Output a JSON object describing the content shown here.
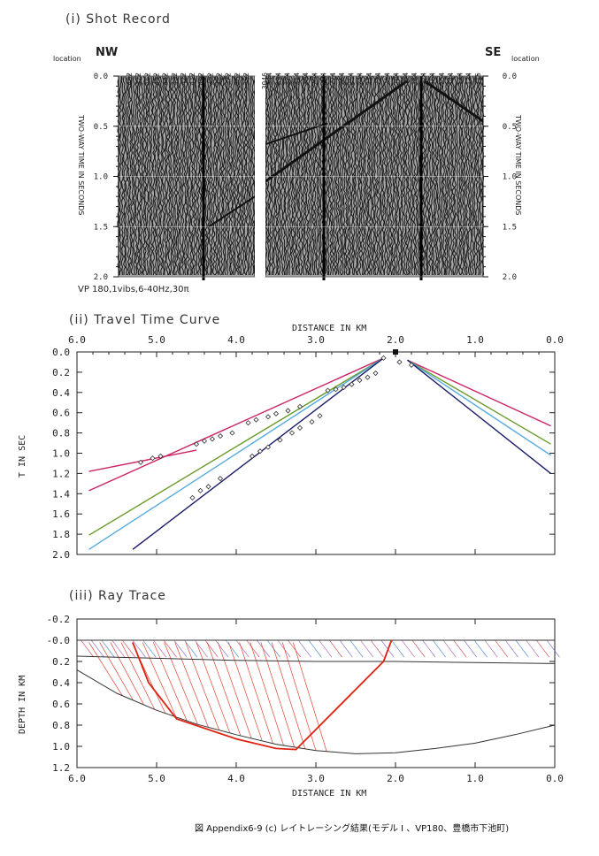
{
  "panel1": {
    "title": "(i)  Shot Record",
    "left_dir": "NW",
    "right_dir": "SE",
    "location_label": "location",
    "axis_label": "TWO-WAY TIME IN SECONDS",
    "time_ticks": [
      "0.0",
      "0.5",
      "1.0",
      "1.5",
      "2.0"
    ],
    "locations_left": [
      "482",
      "472",
      "462",
      "452",
      "442",
      "432",
      "422",
      "412",
      "402",
      "392",
      "382",
      "372",
      "362",
      "352"
    ],
    "locations_right": [
      "344",
      "334",
      "324",
      "314",
      "304",
      "294",
      "284",
      "274",
      "264",
      "254",
      "244",
      "234",
      "224",
      "214",
      "204",
      "194",
      "184",
      "174",
      "164",
      "154",
      "144",
      "134",
      "124",
      "115"
    ],
    "gap_label": "3046",
    "vp_label": "VP 180,1vibs,6-40Hz,30π"
  },
  "panel2": {
    "title": "(ii)  Travel Time Curve",
    "xlabel": "DISTANCE IN KM",
    "ylabel": "T IN SEC",
    "x_ticks": [
      "6.0",
      "5.0",
      "4.0",
      "3.0",
      "2.0",
      "1.0",
      "0.0"
    ],
    "y_ticks": [
      "0.0",
      "0.2",
      "0.4",
      "0.6",
      "0.8",
      "1.0",
      "1.2",
      "1.4",
      "1.6",
      "1.8",
      "2.0"
    ]
  },
  "panel3": {
    "title": "(iii)  Ray Trace",
    "xlabel": "DISTANCE IN KM",
    "ylabel": "DEPTH IN KM",
    "x_ticks": [
      "6.0",
      "5.0",
      "4.0",
      "3.0",
      "2.0",
      "1.0",
      "0.0"
    ],
    "y_ticks": [
      "-0.2",
      "-0.0",
      "0.2",
      "0.4",
      "0.6",
      "0.8",
      "1.0",
      "1.2"
    ]
  },
  "caption": "図 Appendix6-9 (c)  レイトレーシング結果(モデル I 、VP180、豊橋市下池町)",
  "chart_data": [
    {
      "type": "line",
      "title": "(ii)  Travel Time Curve",
      "xlabel": "DISTANCE IN KM",
      "ylabel": "T IN SEC",
      "xlim": [
        6.0,
        0.0
      ],
      "ylim": [
        2.0,
        0.0
      ],
      "source_x": 2.0,
      "series": [
        {
          "color": "#cc2266",
          "x": [
            5.85,
            4.5
          ],
          "y": [
            1.18,
            0.97
          ]
        },
        {
          "color": "#cc2266",
          "x": [
            5.85,
            2.15
          ],
          "y": [
            1.37,
            0.06
          ]
        },
        {
          "color": "#6a9a2a",
          "x": [
            5.85,
            2.15
          ],
          "y": [
            1.81,
            0.06
          ]
        },
        {
          "color": "#55aadd",
          "x": [
            5.85,
            2.15
          ],
          "y": [
            1.95,
            0.06
          ]
        },
        {
          "color": "#1a1a6a",
          "x": [
            5.3,
            2.15
          ],
          "y": [
            1.95,
            0.06
          ]
        },
        {
          "color": "#cc2266",
          "x": [
            1.85,
            0.05
          ],
          "y": [
            0.08,
            0.73
          ]
        },
        {
          "color": "#6a9a2a",
          "x": [
            1.85,
            0.05
          ],
          "y": [
            0.08,
            0.91
          ]
        },
        {
          "color": "#55aadd",
          "x": [
            1.85,
            0.05
          ],
          "y": [
            0.08,
            1.02
          ]
        },
        {
          "color": "#1a1a6a",
          "x": [
            1.85,
            0.05
          ],
          "y": [
            0.08,
            1.2
          ]
        }
      ],
      "observed": {
        "x": [
          5.2,
          5.05,
          4.95,
          4.5,
          4.4,
          4.3,
          4.2,
          4.05,
          3.85,
          3.75,
          3.6,
          3.5,
          3.35,
          3.2,
          2.85,
          2.75,
          2.65,
          2.55,
          2.45,
          2.35,
          2.25,
          2.15,
          1.95,
          1.8,
          4.55,
          4.45,
          4.35,
          4.2,
          3.8,
          3.7,
          3.6,
          3.45,
          3.3,
          3.2,
          3.05,
          2.95
        ],
        "y": [
          1.09,
          1.05,
          1.03,
          0.91,
          0.88,
          0.86,
          0.83,
          0.8,
          0.7,
          0.67,
          0.64,
          0.61,
          0.58,
          0.54,
          0.38,
          0.37,
          0.35,
          0.32,
          0.28,
          0.25,
          0.21,
          0.06,
          0.1,
          0.13,
          1.44,
          1.37,
          1.33,
          1.25,
          1.03,
          0.98,
          0.94,
          0.87,
          0.8,
          0.75,
          0.69,
          0.63
        ]
      }
    },
    {
      "type": "line",
      "title": "(iii)  Ray Trace",
      "xlabel": "DISTANCE IN KM",
      "ylabel": "DEPTH IN KM",
      "xlim": [
        6.0,
        0.0
      ],
      "ylim": [
        1.2,
        -0.2
      ],
      "layers": [
        {
          "name": "surface",
          "x": [
            6.0,
            0.0
          ],
          "y": [
            0.0,
            0.0
          ]
        },
        {
          "x": [
            6.0,
            5.0,
            4.0,
            3.0,
            2.0,
            1.0,
            0.0
          ],
          "y": [
            0.15,
            0.17,
            0.19,
            0.2,
            0.2,
            0.21,
            0.22
          ]
        },
        {
          "x": [
            6.0,
            5.5,
            5.0,
            4.5,
            4.0,
            3.5,
            3.0,
            2.5,
            2.0,
            1.5,
            1.0,
            0.5,
            0.0
          ],
          "y": [
            0.28,
            0.5,
            0.66,
            0.79,
            0.89,
            0.98,
            1.04,
            1.07,
            1.06,
            1.02,
            0.97,
            0.89,
            0.8
          ]
        }
      ],
      "ray_path": {
        "x": [
          2.05,
          2.15,
          3.25,
          3.5,
          4.0,
          4.75,
          5.1,
          5.3
        ],
        "y": [
          0.0,
          0.2,
          1.03,
          1.02,
          0.93,
          0.74,
          0.4,
          0.02
        ]
      }
    }
  ]
}
